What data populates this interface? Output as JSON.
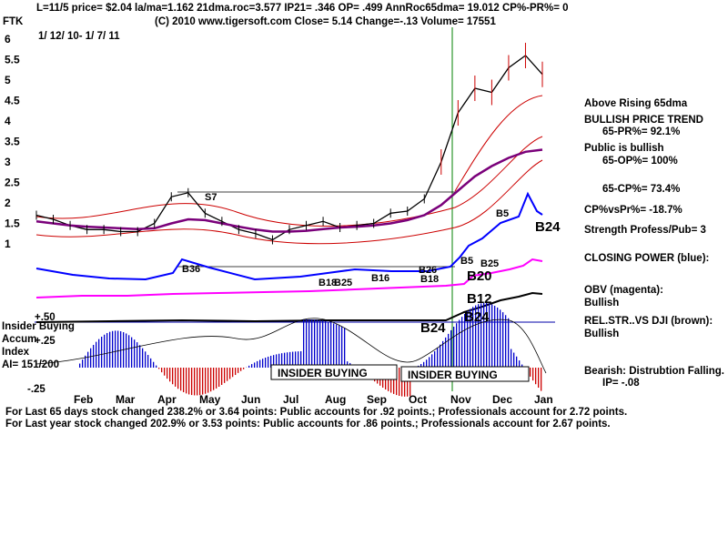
{
  "header": {
    "line1": "L=11/5  price= $2.04  la/ma=1.162 21dma.roc=3.577 IP21= .346 OP= .499 AnnRoc65dma= 19.012 CP%-PR%=  0",
    "line2": "(C) 2010 www.tigersoft.com     Close=  5.14  Change=-.13 Volume= 17551",
    "ticker": "FTK",
    "date_range": "1/ 12/ 10-  1/ 7/ 11"
  },
  "right_panel": [
    {
      "text": "Above Rising 65dma"
    },
    {
      "text": "BULLISH PRICE TREND"
    },
    {
      "text": "65-PR%= 92.1%"
    },
    {
      "text": "Public is bullish"
    },
    {
      "text": "65-OP%= 100%"
    },
    {
      "text": "65-CP%= 73.4%"
    },
    {
      "text": "CP%vsPr%= -18.7%"
    },
    {
      "text": "Strength Profess/Pub= 3"
    },
    {
      "text": "CLOSING POWER (blue):"
    },
    {
      "text": "OBV (magenta):"
    },
    {
      "text": "Bullish"
    },
    {
      "text": "REL.STR..VS DJI (brown):"
    },
    {
      "text": "Bullish"
    },
    {
      "text": "Bearish: Distrubtion Falling."
    },
    {
      "text": "IP= -.08"
    }
  ],
  "indicator_labels": {
    "insider": "Insider Buying",
    "accum": "Accum",
    "index": "Index",
    "ai": "AI= 151/200",
    "box1": "INSIDER BUYING",
    "box2": "INSIDER BUYING"
  },
  "signals": [
    "S7",
    "B36",
    "B18",
    "B25",
    "B16",
    "B26",
    "B18",
    "B5",
    "B25",
    "B20",
    "B24",
    "B12",
    "B24",
    "B24",
    "B5"
  ],
  "footer": {
    "line1": "For Last 65 days stock changed  238.2% or  3.64 points:  Public accounts for  .92 points.;  Professionals account for  2.72 points.",
    "line2": "For Last year stock changed  202.9% or  3.53 points:  Public accounts for  .86 points.;  Professionals account for  2.67 points."
  },
  "colors": {
    "price": "#000000",
    "ma_red": "#cc0000",
    "ma_purple": "#7a007a",
    "closing_power": "#0000ff",
    "obv": "#ff00ff",
    "rel_strength": "#000000",
    "accum_blue": "#0000cc",
    "accum_red": "#cc0000",
    "vline": "#008000"
  },
  "chart_data": {
    "type": "line",
    "title": "FTK",
    "months": [
      "Feb",
      "Mar",
      "Apr",
      "May",
      "Jun",
      "Jul",
      "Aug",
      "Sep",
      "Oct",
      "Nov",
      "Dec",
      "Jan"
    ],
    "price_ticks": [
      6,
      5.5,
      5,
      4.5,
      4,
      3.5,
      3,
      2.5,
      2,
      1.5,
      1
    ],
    "accum_ticks": [
      "+.50",
      "+.25",
      "-.25"
    ],
    "ylim": [
      0.8,
      6.2
    ],
    "series": [
      {
        "values": [
          1.7,
          1.6,
          1.45,
          1.35,
          1.35,
          1.3,
          1.3,
          1.5,
          2.15,
          2.25,
          1.75,
          1.55,
          1.35,
          1.25,
          1.1,
          1.35,
          1.45,
          1.55,
          1.4,
          1.45,
          1.5,
          1.75,
          1.8,
          2.1,
          3.0,
          4.2,
          4.8,
          4.7,
          5.3,
          5.6,
          5.14
        ]
      },
      {
        "values": [
          1.55,
          1.5,
          1.45,
          1.42,
          1.4,
          1.38,
          1.36,
          1.38,
          1.5,
          1.6,
          1.58,
          1.5,
          1.42,
          1.35,
          1.3,
          1.3,
          1.32,
          1.36,
          1.4,
          1.42,
          1.45,
          1.5,
          1.58,
          1.7,
          1.95,
          2.3,
          2.65,
          2.9,
          3.1,
          3.25,
          3.3
        ]
      }
    ]
  }
}
